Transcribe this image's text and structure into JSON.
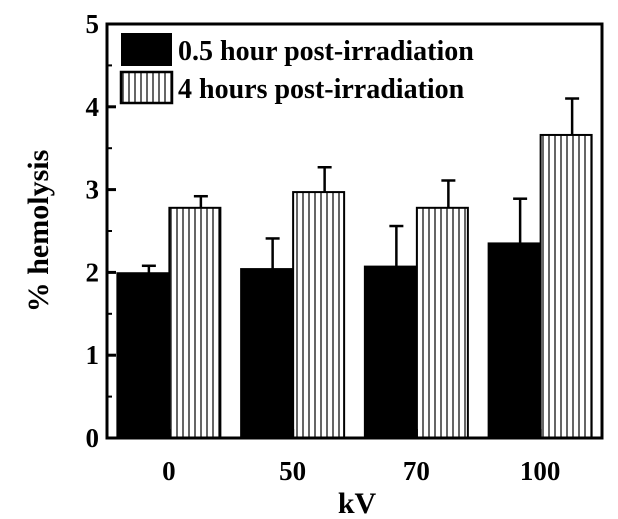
{
  "chart_data": {
    "type": "bar",
    "categories": [
      "0",
      "50",
      "70",
      "100"
    ],
    "series": [
      {
        "name": "0.5 hour post-irradiation",
        "values": [
          1.99,
          2.04,
          2.07,
          2.35
        ],
        "errors": [
          0.09,
          0.37,
          0.49,
          0.54
        ],
        "fill": "solid",
        "color": "#000000"
      },
      {
        "name": "4 hours post-irradiation",
        "values": [
          2.78,
          2.97,
          2.78,
          3.66
        ],
        "errors": [
          0.14,
          0.3,
          0.33,
          0.44
        ],
        "fill": "vertical-stripes",
        "color": "#000000"
      }
    ],
    "xlabel": "kV",
    "ylabel": "% hemolysis",
    "ylim": [
      0,
      5
    ],
    "yticks": [
      "0",
      "1",
      "2",
      "3",
      "4",
      "5"
    ],
    "grid": false,
    "legend_position": "top-left"
  }
}
